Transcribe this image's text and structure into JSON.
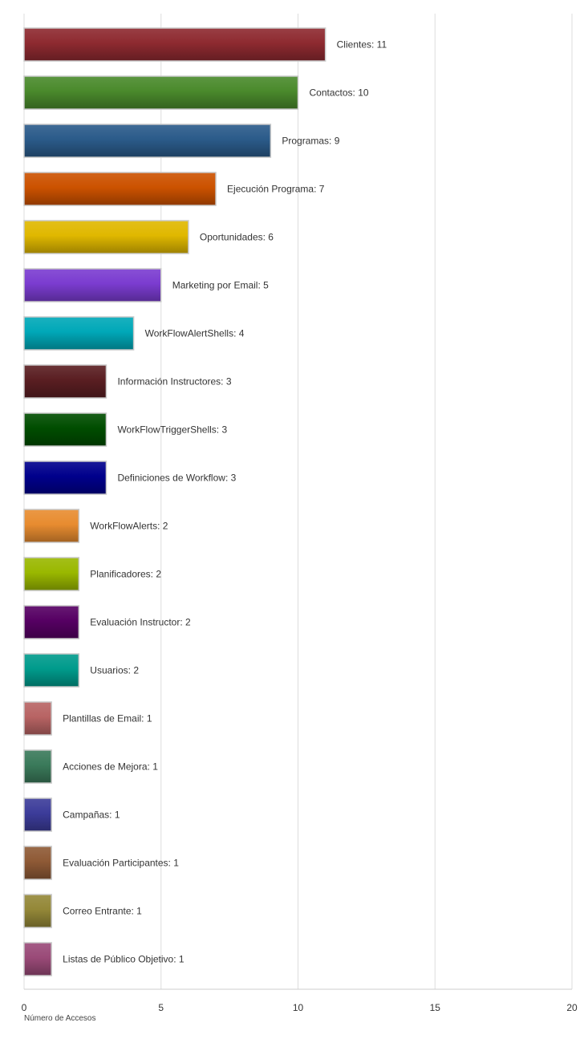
{
  "chart_data": {
    "type": "bar",
    "orientation": "horizontal",
    "xlabel": "Número de Accesos",
    "ylabel": "",
    "xlim": [
      0,
      20
    ],
    "ticks": [
      "0",
      "5",
      "10",
      "15",
      "20"
    ],
    "grid": true,
    "categories": [
      "Clientes",
      "Contactos",
      "Programas",
      "Ejecución Programa",
      "Oportunidades",
      "Marketing por Email",
      "WorkFlowAlertShells",
      "Información Instructores",
      "WorkFlowTriggerShells",
      "Definiciones de Workflow",
      "WorkFlowAlerts",
      "Planificadores",
      "Evaluación Instructor",
      "Usuarios",
      "Plantillas de Email",
      "Acciones de Mejora",
      "Campañas",
      "Evaluación Participantes",
      "Correo Entrante",
      "Listas de Público Objetivo"
    ],
    "values": [
      11,
      10,
      9,
      7,
      6,
      5,
      4,
      3,
      3,
      3,
      2,
      2,
      2,
      2,
      1,
      1,
      1,
      1,
      1,
      1
    ],
    "labels": [
      "Clientes: 11",
      "Contactos: 10",
      "Programas: 9",
      "Ejecución Programa: 7",
      "Oportunidades: 6",
      "Marketing por Email: 5",
      "WorkFlowAlertShells: 4",
      "Información Instructores: 3",
      "WorkFlowTriggerShells: 3",
      "Definiciones de Workflow: 3",
      "WorkFlowAlerts: 2",
      "Planificadores: 2",
      "Evaluación Instructor: 2",
      "Usuarios: 2",
      "Plantillas de Email: 1",
      "Acciones de Mejora: 1",
      "Campañas: 1",
      "Evaluación Participantes: 1",
      "Correo Entrante: 1",
      "Listas de Público Objetivo: 1"
    ],
    "colors": [
      "#8e2a30",
      "#4a8a2c",
      "#2b5b8a",
      "#cc5200",
      "#e0b800",
      "#7b3cd0",
      "#00a8b8",
      "#5a1e22",
      "#004d00",
      "#00008c",
      "#e88c30",
      "#9ab800",
      "#560063",
      "#009b8c",
      "#b86464",
      "#3a7a5a",
      "#3c3c9a",
      "#8f5a36",
      "#948838",
      "#9a4a78"
    ]
  }
}
